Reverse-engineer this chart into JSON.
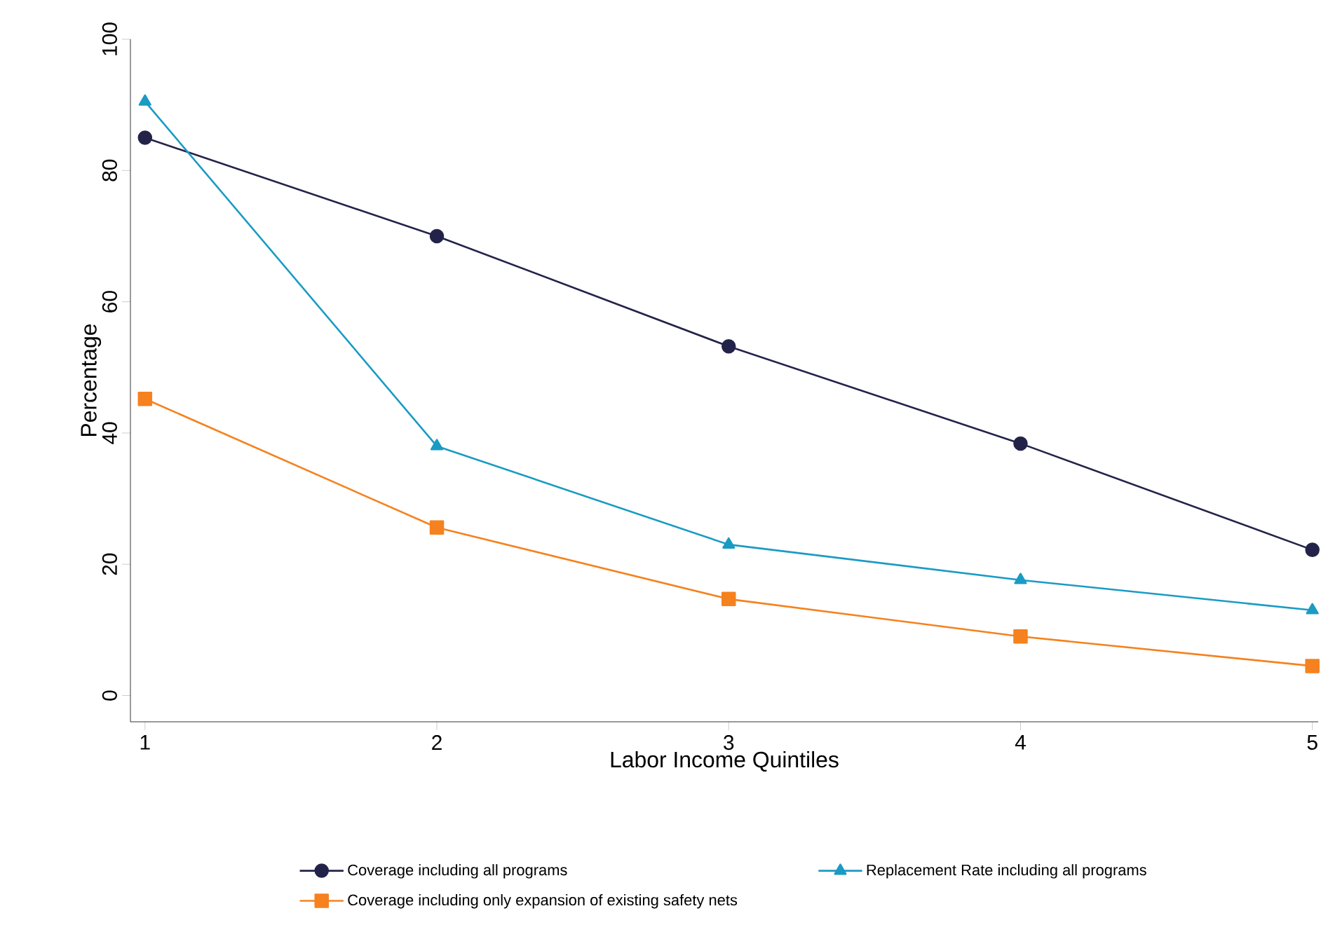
{
  "chart_data": {
    "type": "line",
    "xlabel": "Labor Income Quintiles",
    "ylabel": "Percentage",
    "x": [
      1,
      2,
      3,
      4,
      5
    ],
    "series": [
      {
        "name": "Coverage including all programs",
        "color": "#23234a",
        "marker": "circle",
        "values": [
          85,
          70,
          53.2,
          38.4,
          22.2
        ]
      },
      {
        "name": "Replacement Rate including all programs",
        "color": "#1a9bc4",
        "marker": "triangle",
        "values": [
          90.5,
          38,
          23,
          17.6,
          13
        ]
      },
      {
        "name": "Coverage including only expansion of existing safety nets",
        "color": "#f5821f",
        "marker": "square",
        "values": [
          45.2,
          25.6,
          14.7,
          9,
          4.5
        ]
      }
    ],
    "xlim": [
      0.95,
      5.02
    ],
    "ylim": [
      -4,
      100
    ],
    "xticks": [
      1,
      2,
      3,
      4,
      5
    ],
    "yticks": [
      0,
      20,
      40,
      60,
      80,
      100
    ],
    "grid": false,
    "legend": "bottom"
  }
}
